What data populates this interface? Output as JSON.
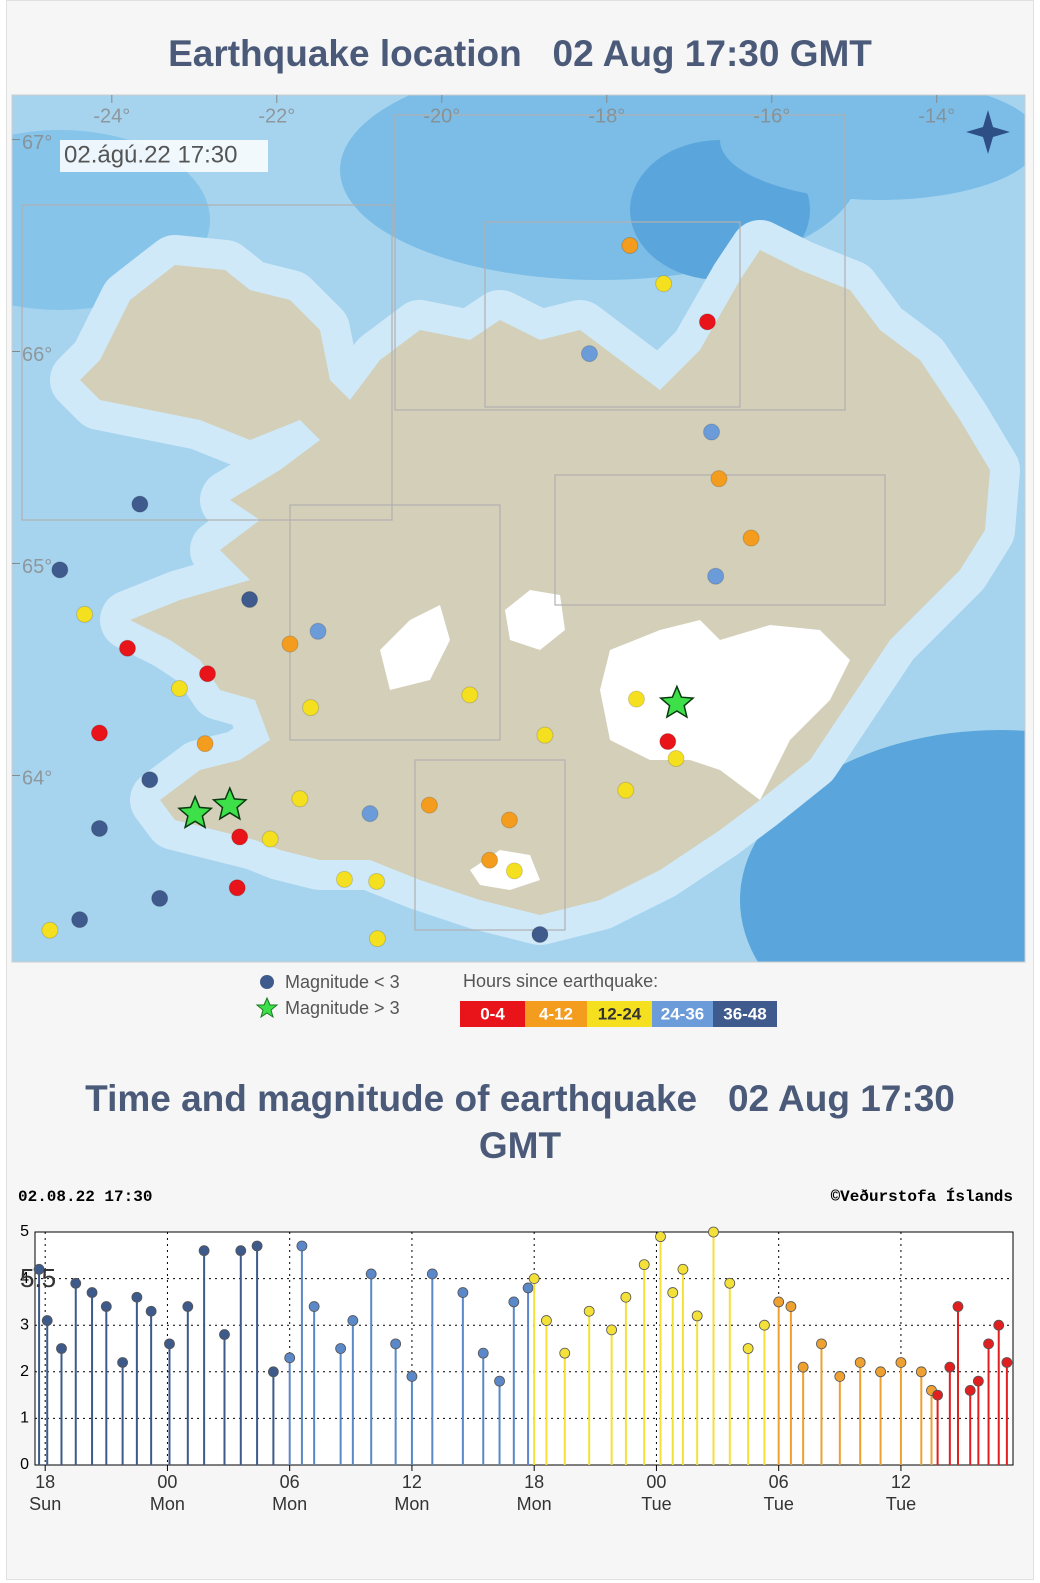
{
  "page_title": "Earthquake location   02 Aug 17:30 GMT",
  "map": {
    "timestamp": "02.ágú.22 17:30",
    "lonlim": [
      -25.21,
      -12.93
    ],
    "latlim": [
      63.12,
      67.21
    ],
    "lonticks": [
      {
        "value": -24,
        "label": "-24°"
      },
      {
        "value": -22,
        "label": "-22°"
      },
      {
        "value": -20,
        "label": "-20°"
      },
      {
        "value": -18,
        "label": "-18°"
      },
      {
        "value": -16,
        "label": "-16°"
      },
      {
        "value": -14,
        "label": "-14°"
      }
    ],
    "latticks": [
      {
        "value": 67,
        "label": "67°"
      },
      {
        "value": 66,
        "label": "66°"
      },
      {
        "value": 65,
        "label": "65°"
      },
      {
        "value": 64,
        "label": "64°"
      }
    ],
    "groups": [
      {
        "label": "0-4",
        "color": "#e8141a",
        "points": [
          [
            -16.78,
            66.14
          ],
          [
            -17.26,
            64.16
          ],
          [
            -22.84,
            64.48
          ],
          [
            -23.81,
            64.6
          ],
          [
            -24.15,
            64.2
          ],
          [
            -22.45,
            63.71
          ],
          [
            -22.48,
            63.47
          ]
        ]
      },
      {
        "label": "4-12",
        "color": "#f39c1e",
        "points": [
          [
            -17.72,
            66.5
          ],
          [
            -16.64,
            65.4
          ],
          [
            -16.25,
            65.12
          ],
          [
            -20.15,
            63.86
          ],
          [
            -19.18,
            63.79
          ],
          [
            -19.42,
            63.6
          ],
          [
            -21.84,
            64.62
          ],
          [
            -22.87,
            64.15
          ]
        ]
      },
      {
        "label": "12-24",
        "color": "#f5e020",
        "points": [
          [
            -17.31,
            66.32
          ],
          [
            -17.64,
            64.36
          ],
          [
            -17.16,
            64.08
          ],
          [
            -17.77,
            63.93
          ],
          [
            -18.75,
            64.19
          ],
          [
            -19.66,
            64.38
          ],
          [
            -19.12,
            63.55
          ],
          [
            -21.18,
            63.51
          ],
          [
            -20.79,
            63.5
          ],
          [
            -20.78,
            63.23
          ],
          [
            -21.59,
            64.32
          ],
          [
            -22.08,
            63.7
          ],
          [
            -21.72,
            63.89
          ],
          [
            -23.18,
            64.41
          ],
          [
            -24.33,
            64.76
          ],
          [
            -24.75,
            63.27
          ]
        ]
      },
      {
        "label": "24-36",
        "color": "#6b9bd8",
        "points": [
          [
            -18.21,
            65.99
          ],
          [
            -16.73,
            65.62
          ],
          [
            -16.68,
            64.94
          ],
          [
            -20.87,
            63.82
          ],
          [
            -21.5,
            64.68
          ]
        ]
      },
      {
        "label": "36-48",
        "color": "#3f5a8c",
        "points": [
          [
            -18.81,
            63.25
          ],
          [
            -23.66,
            65.28
          ],
          [
            -23.42,
            63.42
          ],
          [
            -24.39,
            63.32
          ],
          [
            -24.63,
            64.97
          ],
          [
            -22.33,
            64.83
          ],
          [
            -23.54,
            63.98
          ],
          [
            -24.15,
            63.75
          ]
        ]
      }
    ],
    "stars": [
      [
        -17.15,
        64.34
      ],
      [
        -22.99,
        63.82
      ],
      [
        -22.57,
        63.86
      ]
    ],
    "star_color": "#3ee04a"
  },
  "legend": {
    "magnitude_small": "Magnitude < 3",
    "magnitude_large": "Magnitude > 3",
    "hours_title": "Hours since earthquake:"
  },
  "chart_title": "Time and magnitude of earthquake   02 Aug 17:30 GMT",
  "chart_data": {
    "type": "stem",
    "header_left": "02.08.22 17:30",
    "header_right": "©Veðurstofa Íslands",
    "annotation": "5.5",
    "xlim": [
      -0.5,
      47.5
    ],
    "ylim": [
      0,
      5
    ],
    "yticks": [
      0,
      1,
      2,
      3,
      4,
      5
    ],
    "xticks": [
      {
        "value": 0,
        "label": "18",
        "sublabel": "Sun"
      },
      {
        "value": 6,
        "label": "00",
        "sublabel": "Mon"
      },
      {
        "value": 12,
        "label": "06",
        "sublabel": "Mon"
      },
      {
        "value": 18,
        "label": "12",
        "sublabel": "Mon"
      },
      {
        "value": 24,
        "label": "18",
        "sublabel": "Mon"
      },
      {
        "value": 30,
        "label": "00",
        "sublabel": "Tue"
      },
      {
        "value": 36,
        "label": "06",
        "sublabel": "Tue"
      },
      {
        "value": 42,
        "label": "12",
        "sublabel": "Tue"
      }
    ],
    "grid": true,
    "series": [
      {
        "color": "#3d5a8a",
        "x": [
          -0.3,
          0.1,
          0.8,
          1.5,
          2.3,
          3.0,
          3.8,
          4.5,
          5.2,
          6.1,
          7.0,
          7.8,
          8.8,
          9.6,
          10.4,
          11.2
        ],
        "values": [
          4.2,
          3.1,
          2.5,
          3.9,
          3.7,
          3.4,
          2.2,
          3.6,
          3.3,
          2.6,
          3.4,
          4.6,
          2.8,
          4.6,
          4.7,
          2.0
        ]
      },
      {
        "color": "#5a88c8",
        "x": [
          12.0,
          12.6,
          13.2,
          14.5,
          15.1,
          16.0,
          17.2,
          18.0,
          19.0,
          20.5,
          21.5,
          22.3,
          23.0,
          23.7
        ],
        "values": [
          2.3,
          4.7,
          3.4,
          2.5,
          3.1,
          4.1,
          2.6,
          1.9,
          4.1,
          3.7,
          2.4,
          1.8,
          3.5,
          3.8
        ]
      },
      {
        "color": "#f3e13a",
        "x": [
          24.0,
          24.6,
          25.5,
          26.7,
          27.8,
          28.5,
          29.4,
          30.2,
          30.8,
          31.3,
          32.0,
          32.8,
          33.6,
          34.5,
          35.3
        ],
        "values": [
          4.0,
          3.1,
          2.4,
          3.3,
          2.9,
          3.6,
          4.3,
          4.9,
          3.7,
          4.2,
          3.2,
          5.0,
          3.9,
          2.5,
          3.0
        ]
      },
      {
        "color": "#eea030",
        "x": [
          36.0,
          36.6,
          37.2,
          38.1,
          39.0,
          40.0,
          41.0,
          42.0,
          43.0,
          43.5
        ],
        "values": [
          3.5,
          3.4,
          2.1,
          2.6,
          1.9,
          2.2,
          2.0,
          2.2,
          2.0,
          1.6
        ]
      },
      {
        "color": "#e02020",
        "x": [
          43.8,
          44.4,
          44.8,
          45.4,
          45.8,
          46.3,
          46.8,
          47.2
        ],
        "values": [
          1.5,
          2.1,
          3.4,
          1.6,
          1.8,
          2.6,
          3.0,
          2.2
        ]
      }
    ]
  }
}
